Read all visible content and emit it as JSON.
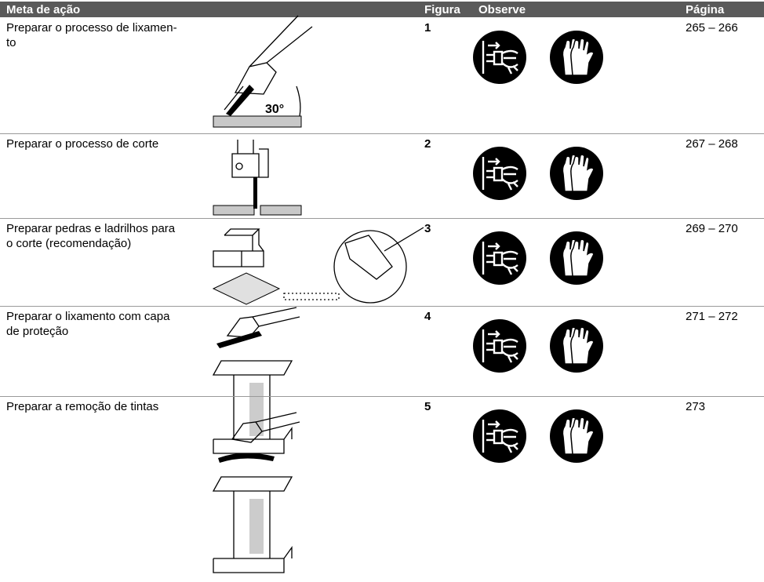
{
  "header": {
    "columns": [
      "Meta de ação",
      "Figura",
      "Observe",
      "Página"
    ]
  },
  "table": {
    "rows": [
      {
        "goal": "Preparar o processo de lixamen-\nto",
        "figure": "1",
        "pages": "265 – 266",
        "figure_label": "30°"
      },
      {
        "goal": "Preparar o processo de corte",
        "figure": "2",
        "pages": "267 – 268"
      },
      {
        "goal": "Preparar pedras e ladrilhos para\no corte (recomendação)",
        "figure": "3",
        "pages": "269 – 270"
      },
      {
        "goal": "Preparar o lixamento com capa\nde proteção",
        "figure": "4",
        "pages": "271 – 272"
      },
      {
        "goal": "Preparar a remoção de tintas",
        "figure": "5",
        "pages": "273"
      }
    ]
  }
}
